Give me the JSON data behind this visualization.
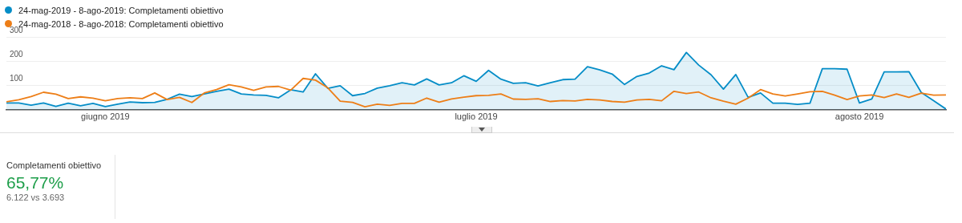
{
  "chart_data": [
    {
      "type": "line",
      "x": [
        "2019-05-24",
        "2019-05-25",
        "2019-05-26",
        "2019-05-27",
        "2019-05-28",
        "2019-05-29",
        "2019-05-30",
        "2019-05-31",
        "2019-06-01",
        "2019-06-02",
        "2019-06-03",
        "2019-06-04",
        "2019-06-05",
        "2019-06-06",
        "2019-06-07",
        "2019-06-08",
        "2019-06-09",
        "2019-06-10",
        "2019-06-11",
        "2019-06-12",
        "2019-06-13",
        "2019-06-14",
        "2019-06-15",
        "2019-06-16",
        "2019-06-17",
        "2019-06-18",
        "2019-06-19",
        "2019-06-20",
        "2019-06-21",
        "2019-06-22",
        "2019-06-23",
        "2019-06-24",
        "2019-06-25",
        "2019-06-26",
        "2019-06-27",
        "2019-06-28",
        "2019-06-29",
        "2019-06-30",
        "2019-07-01",
        "2019-07-02",
        "2019-07-03",
        "2019-07-04",
        "2019-07-05",
        "2019-07-06",
        "2019-07-07",
        "2019-07-08",
        "2019-07-09",
        "2019-07-10",
        "2019-07-11",
        "2019-07-12",
        "2019-07-13",
        "2019-07-14",
        "2019-07-15",
        "2019-07-16",
        "2019-07-17",
        "2019-07-18",
        "2019-07-19",
        "2019-07-20",
        "2019-07-21",
        "2019-07-22",
        "2019-07-23",
        "2019-07-24",
        "2019-07-25",
        "2019-07-26",
        "2019-07-27",
        "2019-07-28",
        "2019-07-29",
        "2019-07-30",
        "2019-07-31",
        "2019-08-01",
        "2019-08-02",
        "2019-08-03",
        "2019-08-04",
        "2019-08-05",
        "2019-08-06",
        "2019-08-07",
        "2019-08-08"
      ],
      "series": [
        {
          "name": "24-mag-2019 - 8-ago-2019: Completamenti obiettivo",
          "type": "area",
          "color": "#058dc7",
          "values": [
            28,
            28,
            19,
            28,
            14,
            27,
            16,
            26,
            13,
            23,
            32,
            29,
            30,
            43,
            64,
            54,
            65,
            76,
            85,
            65,
            61,
            59,
            49,
            82,
            73,
            148,
            88,
            99,
            58,
            67,
            89,
            99,
            111,
            102,
            127,
            102,
            111,
            140,
            117,
            162,
            126,
            109,
            111,
            98,
            111,
            124,
            126,
            177,
            164,
            147,
            104,
            137,
            151,
            181,
            165,
            236,
            184,
            144,
            85,
            145,
            51,
            69,
            27,
            27,
            22,
            27,
            169,
            169,
            167,
            28,
            44,
            156,
            156,
            157,
            71,
            37,
            3
          ]
        },
        {
          "name": "24-mag-2018 - 8-ago-2018: Completamenti obiettivo",
          "type": "line",
          "color": "#ed7e17",
          "values": [
            33,
            41,
            54,
            72,
            64,
            46,
            53,
            48,
            37,
            46,
            49,
            46,
            69,
            42,
            51,
            30,
            69,
            83,
            103,
            94,
            80,
            94,
            96,
            81,
            129,
            122,
            90,
            35,
            30,
            12,
            23,
            18,
            26,
            26,
            48,
            31,
            44,
            52,
            58,
            59,
            65,
            44,
            43,
            45,
            34,
            38,
            36,
            43,
            40,
            34,
            31,
            40,
            43,
            37,
            76,
            67,
            73,
            49,
            35,
            23,
            48,
            83,
            65,
            57,
            65,
            74,
            76,
            60,
            42,
            57,
            61,
            50,
            65,
            51,
            68,
            60,
            61
          ]
        }
      ],
      "xlim": [
        "2019-05-24",
        "2019-08-08"
      ],
      "xticks": [
        {
          "value": "2019-06-01",
          "label": "giugno 2019"
        },
        {
          "value": "2019-07-01",
          "label": "luglio 2019"
        },
        {
          "value": "2019-08-01",
          "label": "agosto 2019"
        }
      ],
      "ylim": [
        0,
        300
      ],
      "yticks": [
        100,
        200,
        300
      ],
      "grid": "y",
      "legend": "top left",
      "marker": "none"
    },
    {
      "type": "other",
      "title": "Completamenti obiettivo",
      "annotations": [
        "65,77%",
        "6.122 vs 3.693"
      ]
    }
  ]
}
